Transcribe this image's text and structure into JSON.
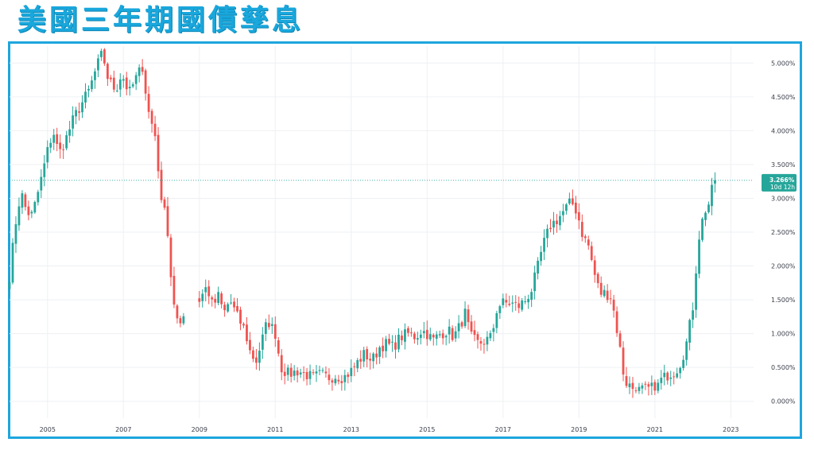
{
  "page": {
    "title": "美國三年期國債孳息"
  },
  "chart_data": {
    "type": "candlestick",
    "interval": "monthly",
    "ylim": [
      -0.25,
      5.25
    ],
    "y_ticks": [
      "0.000%",
      "0.500%",
      "1.000%",
      "1.500%",
      "2.000%",
      "2.500%",
      "3.000%",
      "3.500%",
      "4.000%",
      "4.500%",
      "5.000%"
    ],
    "y_tick_values": [
      0,
      0.5,
      1,
      1.5,
      2,
      2.5,
      3,
      3.5,
      4,
      4.5,
      5
    ],
    "x_ticks": [
      "2005",
      "2007",
      "2009",
      "2011",
      "2013",
      "2015",
      "2017",
      "2019",
      "2021",
      "2023"
    ],
    "x_tick_values": [
      2005,
      2007,
      2009,
      2011,
      2013,
      2015,
      2017,
      2019,
      2021,
      2023
    ],
    "xlim": [
      2004.0,
      2023.6
    ],
    "grid": true,
    "last_price": {
      "value": 3.266,
      "label": "3.266%",
      "countdown": "10d 12h"
    },
    "colors": {
      "up": "#26a69a",
      "down": "#ef5350",
      "last_price_bg": "#26a69a",
      "frame": "#1ea6df",
      "title": "#19a7dc"
    },
    "anchors": [
      [
        2004.0,
        1.85
      ],
      [
        2004.15,
        2.6
      ],
      [
        2004.3,
        3.1
      ],
      [
        2004.45,
        2.8
      ],
      [
        2004.6,
        2.75
      ],
      [
        2004.8,
        3.2
      ],
      [
        2005.0,
        3.7
      ],
      [
        2005.15,
        4.0
      ],
      [
        2005.3,
        3.65
      ],
      [
        2005.5,
        3.9
      ],
      [
        2005.7,
        4.2
      ],
      [
        2005.85,
        4.35
      ],
      [
        2006.1,
        4.6
      ],
      [
        2006.3,
        4.95
      ],
      [
        2006.45,
        5.15
      ],
      [
        2006.6,
        4.75
      ],
      [
        2006.8,
        4.6
      ],
      [
        2006.95,
        4.85
      ],
      [
        2007.15,
        4.55
      ],
      [
        2007.35,
        4.8
      ],
      [
        2007.5,
        4.95
      ],
      [
        2007.65,
        4.3
      ],
      [
        2007.85,
        3.9
      ],
      [
        2008.0,
        2.9
      ],
      [
        2008.1,
        2.95
      ],
      [
        2008.3,
        1.5
      ],
      [
        2008.45,
        1.05
      ],
      [
        2008.6,
        1.35
      ],
      [
        2008.8,
        1.55
      ],
      [
        2009.0,
        1.5
      ],
      [
        2009.2,
        1.7
      ],
      [
        2009.35,
        1.4
      ],
      [
        2009.5,
        1.55
      ],
      [
        2009.65,
        1.3
      ],
      [
        2009.8,
        1.5
      ],
      [
        2010.0,
        1.25
      ],
      [
        2010.2,
        1.05
      ],
      [
        2010.35,
        0.7
      ],
      [
        2010.5,
        0.6
      ],
      [
        2010.65,
        0.9
      ],
      [
        2010.8,
        1.2
      ],
      [
        2011.0,
        1.0
      ],
      [
        2011.15,
        0.5
      ],
      [
        2011.35,
        0.4
      ],
      [
        2011.6,
        0.45
      ],
      [
        2011.8,
        0.4
      ],
      [
        2012.0,
        0.35
      ],
      [
        2012.2,
        0.4
      ],
      [
        2012.4,
        0.35
      ],
      [
        2012.6,
        0.38
      ],
      [
        2012.8,
        0.35
      ],
      [
        2013.0,
        0.45
      ],
      [
        2013.2,
        0.6
      ],
      [
        2013.35,
        0.7
      ],
      [
        2013.55,
        0.6
      ],
      [
        2013.75,
        0.8
      ],
      [
        2013.9,
        0.85
      ],
      [
        2014.1,
        0.8
      ],
      [
        2014.3,
        0.95
      ],
      [
        2014.5,
        1.0
      ],
      [
        2014.7,
        0.95
      ],
      [
        2014.85,
        1.05
      ],
      [
        2015.0,
        1.0
      ],
      [
        2015.15,
        0.9
      ],
      [
        2015.35,
        1.0
      ],
      [
        2015.55,
        1.05
      ],
      [
        2015.7,
        0.95
      ],
      [
        2015.85,
        1.1
      ],
      [
        2016.0,
        1.3
      ],
      [
        2016.15,
        0.95
      ],
      [
        2016.35,
        0.85
      ],
      [
        2016.55,
        0.9
      ],
      [
        2016.7,
        0.95
      ],
      [
        2016.85,
        1.4
      ],
      [
        2017.0,
        1.45
      ],
      [
        2017.2,
        1.45
      ],
      [
        2017.4,
        1.4
      ],
      [
        2017.6,
        1.5
      ],
      [
        2017.75,
        1.65
      ],
      [
        2017.9,
        1.95
      ],
      [
        2018.05,
        2.3
      ],
      [
        2018.25,
        2.6
      ],
      [
        2018.45,
        2.7
      ],
      [
        2018.65,
        2.85
      ],
      [
        2018.8,
        2.95
      ],
      [
        2018.95,
        2.8
      ],
      [
        2019.1,
        2.45
      ],
      [
        2019.25,
        2.3
      ],
      [
        2019.4,
        1.9
      ],
      [
        2019.55,
        1.6
      ],
      [
        2019.7,
        1.6
      ],
      [
        2019.85,
        1.55
      ],
      [
        2020.05,
        0.9
      ],
      [
        2020.2,
        0.3
      ],
      [
        2020.4,
        0.2
      ],
      [
        2020.6,
        0.15
      ],
      [
        2020.8,
        0.18
      ],
      [
        2021.0,
        0.2
      ],
      [
        2021.15,
        0.3
      ],
      [
        2021.35,
        0.4
      ],
      [
        2021.55,
        0.45
      ],
      [
        2021.7,
        0.6
      ],
      [
        2021.85,
        0.9
      ],
      [
        2022.0,
        1.4
      ],
      [
        2022.15,
        2.4
      ],
      [
        2022.3,
        2.8
      ],
      [
        2022.45,
        2.95
      ],
      [
        2022.55,
        3.27
      ]
    ]
  }
}
